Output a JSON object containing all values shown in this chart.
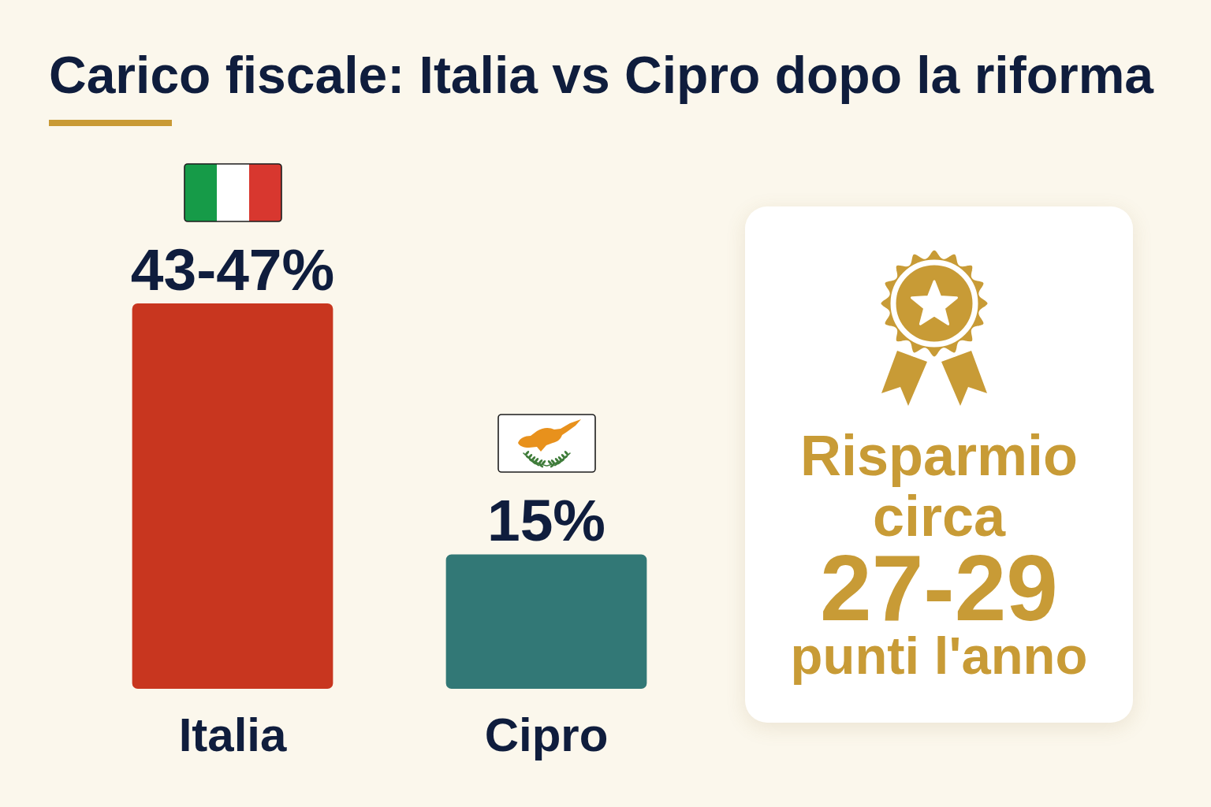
{
  "chart_data": {
    "type": "bar",
    "title": "Carico fiscale: Italia vs Cipro dopo la riforma",
    "categories": [
      "Italia",
      "Cipro"
    ],
    "values": [
      43,
      15
    ],
    "value_labels": [
      "43-47%",
      "15%"
    ],
    "colors": [
      "#c8361f",
      "#327876"
    ],
    "annotations": [
      "Risparmio circa",
      "27-29",
      "punti l'anno"
    ],
    "grid": false,
    "legend": false
  }
}
